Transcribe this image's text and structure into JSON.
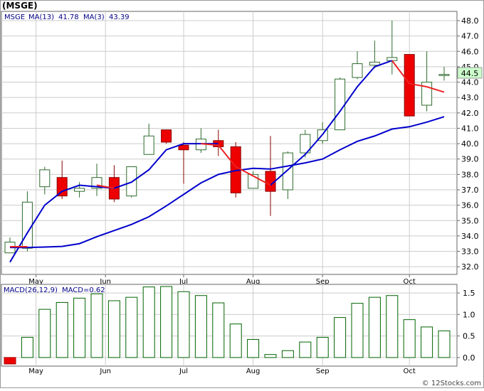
{
  "title": "(MSGE)",
  "price_legend": {
    "symbol": "MSGE",
    "ma13_label": "MA(13)",
    "ma13_value": "41.78",
    "ma3_label": "MA(3)",
    "ma3_value": "43.39"
  },
  "macd_legend": {
    "label": "MACD(26,12,9)",
    "value_label": "MACD=0.62"
  },
  "last_price_tag": "44.5",
  "watermark": "© 12Stocks.com",
  "colors": {
    "up_candle_border": "#2e6b2e",
    "down_candle": "#ee0000",
    "ma13": "#0000cc",
    "ma3": "#ee2222",
    "macd_bar": "#006400",
    "grid": "#cccccc",
    "tag_bg": "#ccffcc"
  },
  "chart_data": [
    {
      "type": "candlestick",
      "name": "price",
      "ylim": [
        31.5,
        48.6
      ],
      "y_ticks": [
        32.0,
        33.0,
        34.0,
        35.0,
        36.0,
        37.0,
        38.0,
        39.0,
        40.0,
        41.0,
        42.0,
        43.0,
        44.0,
        45.0,
        46.0,
        47.0,
        48.0
      ],
      "x_labels": [
        {
          "label": "May",
          "index": 1.5
        },
        {
          "label": "Jun",
          "index": 5.5
        },
        {
          "label": "Jul",
          "index": 10
        },
        {
          "label": "Aug",
          "index": 14
        },
        {
          "label": "Sep",
          "index": 18
        },
        {
          "label": "Oct",
          "index": 23
        }
      ],
      "grid": true,
      "candles": [
        {
          "o": 32.9,
          "h": 33.9,
          "l": 32.9,
          "c": 33.6
        },
        {
          "o": 33.2,
          "h": 36.9,
          "l": 33.0,
          "c": 36.2
        },
        {
          "o": 37.2,
          "h": 38.5,
          "l": 36.7,
          "c": 38.3
        },
        {
          "o": 37.8,
          "h": 38.9,
          "l": 36.4,
          "c": 36.6
        },
        {
          "o": 36.9,
          "h": 37.5,
          "l": 36.5,
          "c": 37.1
        },
        {
          "o": 37.1,
          "h": 38.7,
          "l": 36.6,
          "c": 37.8
        },
        {
          "o": 37.8,
          "h": 38.6,
          "l": 36.2,
          "c": 36.4
        },
        {
          "o": 36.6,
          "h": 38.5,
          "l": 36.5,
          "c": 38.5
        },
        {
          "o": 39.3,
          "h": 41.3,
          "l": 39.3,
          "c": 40.5
        },
        {
          "o": 40.9,
          "h": 40.9,
          "l": 40.0,
          "c": 40.1
        },
        {
          "o": 39.9,
          "h": 40.1,
          "l": 37.4,
          "c": 39.6
        },
        {
          "o": 39.6,
          "h": 41.0,
          "l": 39.4,
          "c": 40.3
        },
        {
          "o": 40.2,
          "h": 40.9,
          "l": 39.2,
          "c": 39.8
        },
        {
          "o": 39.8,
          "h": 40.1,
          "l": 36.5,
          "c": 36.8
        },
        {
          "o": 37.1,
          "h": 38.2,
          "l": 37.1,
          "c": 38.0
        },
        {
          "o": 38.2,
          "h": 40.5,
          "l": 35.3,
          "c": 36.9
        },
        {
          "o": 37.0,
          "h": 39.5,
          "l": 36.4,
          "c": 39.4
        },
        {
          "o": 39.4,
          "h": 40.9,
          "l": 39.1,
          "c": 40.6
        },
        {
          "o": 40.2,
          "h": 41.4,
          "l": 40.0,
          "c": 40.9
        },
        {
          "o": 40.9,
          "h": 44.3,
          "l": 40.9,
          "c": 44.2
        },
        {
          "o": 44.3,
          "h": 46.0,
          "l": 44.2,
          "c": 45.2
        },
        {
          "o": 45.1,
          "h": 46.7,
          "l": 44.9,
          "c": 45.3
        },
        {
          "o": 45.4,
          "h": 48.0,
          "l": 44.5,
          "c": 45.6
        },
        {
          "o": 45.8,
          "h": 45.8,
          "l": 41.8,
          "c": 41.8
        },
        {
          "o": 42.5,
          "h": 46.0,
          "l": 42.1,
          "c": 44.0
        },
        {
          "o": 44.5,
          "h": 45.0,
          "l": 44.1,
          "c": 44.5
        }
      ],
      "ma13": [
        {
          "i": 0,
          "v": 32.3
        },
        {
          "i": 1,
          "v": 34.2
        },
        {
          "i": 2,
          "v": 36.0
        },
        {
          "i": 3,
          "v": 36.9
        },
        {
          "i": 4,
          "v": 37.3
        },
        {
          "i": 5,
          "v": 37.2
        },
        {
          "i": 6,
          "v": 37.1
        },
        {
          "i": 7,
          "v": 37.5
        },
        {
          "i": 8,
          "v": 38.3
        },
        {
          "i": 9,
          "v": 39.6
        },
        {
          "i": 10,
          "v": 40.0
        },
        {
          "i": 11,
          "v": 40.0
        },
        {
          "i": 12,
          "v": 40.0
        }
      ],
      "ma13_b": [
        {
          "i": 0,
          "v": 33.25
        },
        {
          "i": 1,
          "v": 33.25
        },
        {
          "i": 2,
          "v": 33.28
        },
        {
          "i": 3,
          "v": 33.32
        },
        {
          "i": 4,
          "v": 33.5
        },
        {
          "i": 5,
          "v": 33.95
        },
        {
          "i": 6,
          "v": 34.35
        },
        {
          "i": 7,
          "v": 34.75
        },
        {
          "i": 8,
          "v": 35.25
        },
        {
          "i": 9,
          "v": 35.95
        },
        {
          "i": 10,
          "v": 36.7
        },
        {
          "i": 11,
          "v": 37.45
        },
        {
          "i": 12,
          "v": 38.0
        },
        {
          "i": 13,
          "v": 38.25
        },
        {
          "i": 14,
          "v": 38.4
        },
        {
          "i": 15,
          "v": 38.35
        },
        {
          "i": 16,
          "v": 38.55
        },
        {
          "i": 17,
          "v": 38.75
        },
        {
          "i": 18,
          "v": 39.0
        },
        {
          "i": 19,
          "v": 39.6
        },
        {
          "i": 20,
          "v": 40.15
        },
        {
          "i": 21,
          "v": 40.5
        },
        {
          "i": 22,
          "v": 40.95
        },
        {
          "i": 23,
          "v": 41.1
        },
        {
          "i": 24,
          "v": 41.4
        },
        {
          "i": 25,
          "v": 41.75
        }
      ],
      "ma3_red": [
        {
          "i": 0,
          "v": 33.3
        },
        {
          "i": 1,
          "v": 33.3
        },
        {
          "i": 5,
          "v": 37.3
        },
        {
          "i": 6,
          "v": 37.1
        },
        {
          "i": 11,
          "v": 40.0
        },
        {
          "i": 12,
          "v": 39.9
        },
        {
          "i": 13,
          "v": 38.5
        },
        {
          "i": 15,
          "v": 37.3
        },
        {
          "i": 22,
          "v": 45.4
        },
        {
          "i": 23,
          "v": 43.9
        },
        {
          "i": 24,
          "v": 43.7
        },
        {
          "i": 25,
          "v": 43.35
        }
      ],
      "ma3_blue_seg": [
        {
          "i": 15,
          "v": 37.3
        },
        {
          "i": 16,
          "v": 38.3
        },
        {
          "i": 17,
          "v": 39.3
        },
        {
          "i": 18,
          "v": 40.6
        },
        {
          "i": 19,
          "v": 42.1
        },
        {
          "i": 20,
          "v": 43.7
        },
        {
          "i": 21,
          "v": 45.0
        },
        {
          "i": 22,
          "v": 45.4
        }
      ]
    },
    {
      "type": "bar",
      "name": "macd",
      "ylim": [
        -0.2,
        1.7
      ],
      "y_ticks": [
        0.0,
        0.5,
        1.0,
        1.5
      ],
      "y_tick_labels": [
        "0.0",
        "0.5",
        "1.0",
        "1.5"
      ],
      "values": [
        -0.15,
        0.47,
        1.12,
        1.28,
        1.38,
        1.48,
        1.32,
        1.4,
        1.64,
        1.65,
        1.53,
        1.44,
        1.27,
        0.78,
        0.42,
        0.07,
        0.16,
        0.36,
        0.47,
        0.93,
        1.26,
        1.4,
        1.44,
        0.88,
        0.71,
        0.62
      ]
    }
  ]
}
